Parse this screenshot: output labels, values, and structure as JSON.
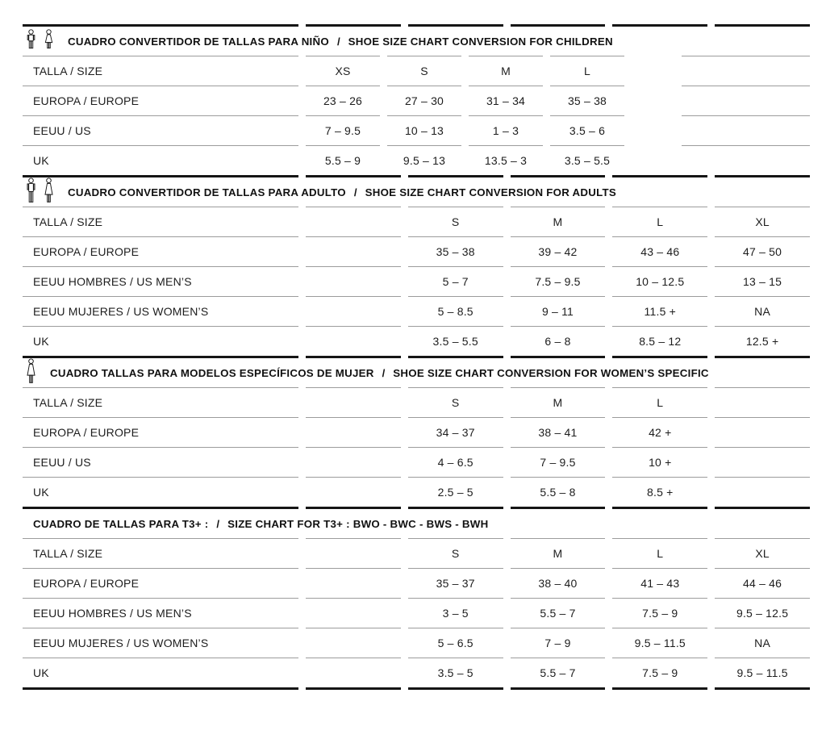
{
  "page": {
    "background": "#ffffff"
  },
  "colors": {
    "rule_thick": "#151515",
    "rule_thin": "#9c9c9c",
    "text": "#1d1d1d"
  },
  "sections": [
    {
      "id": "children",
      "icons": [
        "boy-icon",
        "girl-icon"
      ],
      "title_es": "CUADRO CONVERTIDOR DE TALLAS PARA NIÑO",
      "separator": "/",
      "title_en": "SHOE SIZE CHART CONVERSION FOR CHILDREN",
      "rows": [
        {
          "label": "TALLA / SIZE",
          "cells": [
            "XS",
            "S",
            "M",
            "L",
            ""
          ]
        },
        {
          "label": "EUROPA / EUROPE",
          "cells": [
            "23 – 26",
            "27 – 30",
            "31 – 34",
            "35 – 38",
            ""
          ]
        },
        {
          "label": "EEUU / US",
          "cells": [
            "7 – 9.5",
            "10 – 13",
            "1 – 3",
            "3.5 – 6",
            ""
          ]
        },
        {
          "label": "UK",
          "cells": [
            "5.5 – 9",
            "9.5 – 13",
            "13.5 – 3",
            "3.5 – 5.5",
            ""
          ]
        }
      ]
    },
    {
      "id": "adults",
      "icons": [
        "man-icon",
        "woman-icon"
      ],
      "title_es": "CUADRO CONVERTIDOR DE TALLAS PARA ADULTO",
      "separator": "/",
      "title_en": "SHOE SIZE CHART CONVERSION FOR ADULTS",
      "rows": [
        {
          "label": "TALLA / SIZE",
          "cells": [
            "",
            "S",
            "M",
            "L",
            "XL"
          ]
        },
        {
          "label": "EUROPA / EUROPE",
          "cells": [
            "",
            "35 – 38",
            "39 – 42",
            "43 – 46",
            "47 – 50"
          ]
        },
        {
          "label": "EEUU HOMBRES / US MEN’S",
          "cells": [
            "",
            "5 – 7",
            "7.5 – 9.5",
            "10 – 12.5",
            "13 – 15"
          ]
        },
        {
          "label": "EEUU MUJERES / US WOMEN’S",
          "cells": [
            "",
            "5 – 8.5",
            "9 – 11",
            "11.5 +",
            "NA"
          ]
        },
        {
          "label": "UK",
          "cells": [
            "",
            "3.5 – 5.5",
            "6 – 8",
            "8.5 – 12",
            "12.5 +"
          ]
        }
      ]
    },
    {
      "id": "women-specific",
      "icons": [
        "woman-icon"
      ],
      "title_es": "CUADRO TALLAS PARA MODELOS ESPECÍFICOS DE MUJER",
      "separator": "/",
      "title_en": "SHOE SIZE CHART CONVERSION FOR WOMEN’S SPECIFIC",
      "rows": [
        {
          "label": "TALLA / SIZE",
          "cells": [
            "",
            "S",
            "M",
            "L",
            ""
          ]
        },
        {
          "label": "EUROPA / EUROPE",
          "cells": [
            "",
            "34 – 37",
            "38 – 41",
            "42 +",
            ""
          ]
        },
        {
          "label": "EEUU / US",
          "cells": [
            "",
            "4 – 6.5",
            "7 – 9.5",
            "10 +",
            ""
          ]
        },
        {
          "label": "UK",
          "cells": [
            "",
            "2.5 – 5",
            "5.5 – 8",
            "8.5 +",
            ""
          ]
        }
      ]
    },
    {
      "id": "t3plus",
      "icons": [],
      "title_es": "CUADRO DE TALLAS PARA T3+ :",
      "separator": "/",
      "title_en": "SIZE CHART FOR T3+ :  BWO - BWC - BWS - BWH",
      "rows": [
        {
          "label": "TALLA / SIZE",
          "cells": [
            "",
            "S",
            "M",
            "L",
            "XL"
          ]
        },
        {
          "label": "EUROPA / EUROPE",
          "cells": [
            "",
            "35 – 37",
            "38 – 40",
            "41 – 43",
            "44 – 46"
          ]
        },
        {
          "label": "EEUU HOMBRES / US MEN’S",
          "cells": [
            "",
            "3 – 5",
            "5.5 – 7",
            "7.5 – 9",
            "9.5 – 12.5"
          ]
        },
        {
          "label": "EEUU MUJERES / US WOMEN’S",
          "cells": [
            "",
            "5 – 6.5",
            "7 – 9",
            "9.5 – 11.5",
            "NA"
          ]
        },
        {
          "label": "UK",
          "cells": [
            "",
            "3.5 – 5",
            "5.5 – 7",
            "7.5 – 9",
            "9.5 – 11.5"
          ]
        }
      ]
    }
  ]
}
